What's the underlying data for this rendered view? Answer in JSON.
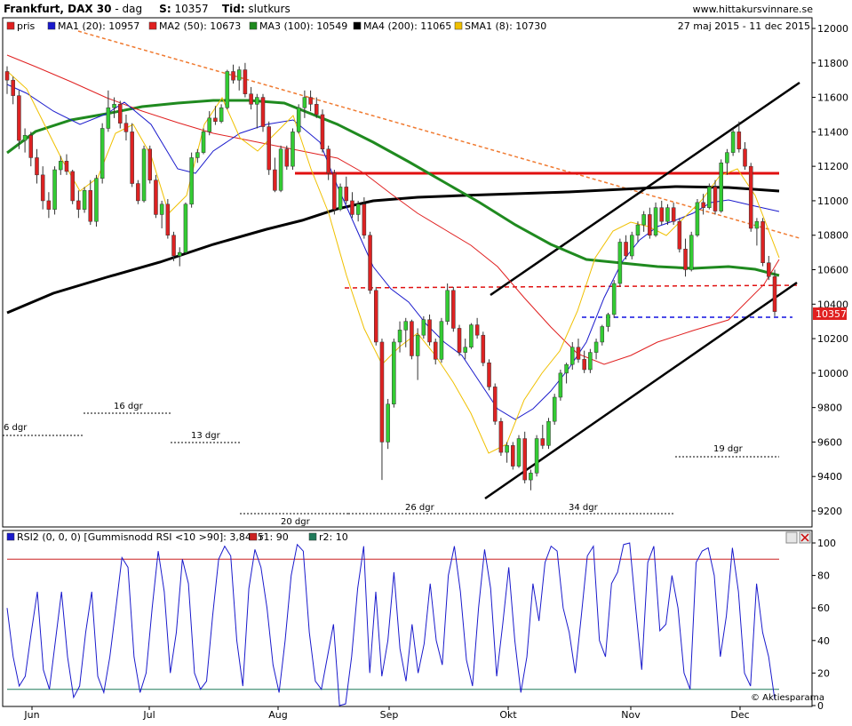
{
  "header": {
    "title": "Frankfurt, DAX 30",
    "sep": "-",
    "period": "dag",
    "s_label": "S:",
    "s_value": "10357",
    "tid_label": "Tid:",
    "tid_value": "slutkurs",
    "site": "www.hittakursvinnare.se",
    "date_range": "27 maj 2015 - 11 dec 2015"
  },
  "legend": [
    {
      "text": "pris",
      "color": "#e02020"
    },
    {
      "text": "MA1 (20): 10957",
      "color": "#1a1acc"
    },
    {
      "text": "MA2 (50): 10673",
      "color": "#e02020"
    },
    {
      "text": "MA3 (100): 10549",
      "color": "#1f8a1f"
    },
    {
      "text": "MA4 (200): 11065",
      "color": "#000000"
    },
    {
      "text": "SMA1 (8): 10730",
      "color": "#f0c000"
    }
  ],
  "price_tag": "10357",
  "annotations": [
    "6 dgr",
    "16 dgr",
    "13 dgr",
    "20 dgr",
    "26 dgr",
    "34 dgr",
    "19 dgr"
  ],
  "rsi_legend": [
    {
      "text": "RSI2 (0, 0, 0) [Gummisnodd RSI <10 >90]: 3,8455",
      "color": "#1a1acc"
    },
    {
      "text": "r1: 90",
      "color": "#cc2020"
    },
    {
      "text": "r2: 10",
      "color": "#1f7a5a"
    }
  ],
  "watermark": "© Aktiespararna",
  "chart_data": [
    {
      "type": "candlestick",
      "title": "Frankfurt, DAX 30",
      "ylim": [
        9200,
        12000
      ],
      "y_ticks": [
        "9200",
        "9400",
        "9600",
        "9800",
        "10000",
        "10200",
        "10400",
        "10600",
        "10800",
        "11000",
        "11200",
        "11400",
        "11600",
        "11800",
        "12000"
      ],
      "x_ticks": [
        "Jun",
        "Jul",
        "Aug",
        "Sep",
        "Okt",
        "Nov",
        "Dec"
      ],
      "last_close": 10357,
      "indicators": {
        "MA1 (20)": 10957,
        "MA2 (50)": 10673,
        "MA3 (100)": 10549,
        "MA4 (200)": 11065,
        "SMA1 (8)": 10730
      },
      "ohlc": [
        [
          11750,
          11780,
          11620,
          11700
        ],
        [
          11700,
          11720,
          11560,
          11610
        ],
        [
          11610,
          11640,
          11300,
          11350
        ],
        [
          11350,
          11420,
          11280,
          11380
        ],
        [
          11380,
          11400,
          11200,
          11250
        ],
        [
          11250,
          11300,
          11100,
          11150
        ],
        [
          11150,
          11200,
          10950,
          11000
        ],
        [
          11000,
          11050,
          10900,
          10950
        ],
        [
          10950,
          11200,
          10920,
          11180
        ],
        [
          11180,
          11260,
          11150,
          11230
        ],
        [
          11230,
          11270,
          11150,
          11170
        ],
        [
          11170,
          11180,
          10980,
          11000
        ],
        [
          11000,
          11060,
          10900,
          10950
        ],
        [
          10950,
          11080,
          10930,
          11060
        ],
        [
          11060,
          11120,
          10860,
          10880
        ],
        [
          10880,
          11150,
          10850,
          11130
        ],
        [
          11130,
          11450,
          11100,
          11420
        ],
        [
          11420,
          11640,
          11400,
          11540
        ],
        [
          11540,
          11600,
          11480,
          11560
        ],
        [
          11560,
          11580,
          11420,
          11450
        ],
        [
          11450,
          11500,
          11350,
          11400
        ],
        [
          11400,
          11450,
          11080,
          11100
        ],
        [
          11100,
          11120,
          10980,
          11000
        ],
        [
          11000,
          11320,
          10990,
          11300
        ],
        [
          11300,
          11320,
          11100,
          11120
        ],
        [
          11120,
          11150,
          10900,
          10920
        ],
        [
          10920,
          11000,
          10840,
          10980
        ],
        [
          10980,
          11010,
          10780,
          10800
        ],
        [
          10800,
          10820,
          10650,
          10680
        ],
        [
          10680,
          10730,
          10620,
          10700
        ],
        [
          10700,
          10990,
          10690,
          10980
        ],
        [
          10980,
          11280,
          10960,
          11250
        ],
        [
          11250,
          11300,
          11220,
          11280
        ],
        [
          11280,
          11420,
          11270,
          11400
        ],
        [
          11400,
          11520,
          11380,
          11480
        ],
        [
          11480,
          11550,
          11440,
          11460
        ],
        [
          11460,
          11560,
          11450,
          11540
        ],
        [
          11540,
          11760,
          11530,
          11750
        ],
        [
          11750,
          11790,
          11680,
          11700
        ],
        [
          11700,
          11780,
          11640,
          11760
        ],
        [
          11760,
          11800,
          11600,
          11620
        ],
        [
          11620,
          11660,
          11530,
          11560
        ],
        [
          11560,
          11620,
          11420,
          11600
        ],
        [
          11600,
          11620,
          11400,
          11430
        ],
        [
          11430,
          11460,
          11150,
          11180
        ],
        [
          11180,
          11250,
          11050,
          11060
        ],
        [
          11060,
          11320,
          11050,
          11300
        ],
        [
          11300,
          11320,
          11180,
          11200
        ],
        [
          11200,
          11420,
          11180,
          11400
        ],
        [
          11400,
          11560,
          11390,
          11540
        ],
        [
          11540,
          11640,
          11480,
          11600
        ],
        [
          11600,
          11640,
          11520,
          11560
        ],
        [
          11560,
          11600,
          11480,
          11500
        ],
        [
          11500,
          11530,
          11280,
          11300
        ],
        [
          11300,
          11320,
          11120,
          11160
        ],
        [
          11160,
          11180,
          10920,
          10950
        ],
        [
          10950,
          11100,
          10940,
          11080
        ],
        [
          11080,
          11140,
          10980,
          11000
        ],
        [
          11000,
          11050,
          10900,
          10920
        ],
        [
          10920,
          11000,
          10880,
          10980
        ],
        [
          10980,
          11020,
          10780,
          10800
        ],
        [
          10800,
          10820,
          10460,
          10480
        ],
        [
          10480,
          10500,
          10160,
          10180
        ],
        [
          10180,
          10200,
          9380,
          9600
        ],
        [
          9600,
          9850,
          9560,
          9820
        ],
        [
          9820,
          10200,
          9800,
          10180
        ],
        [
          10180,
          10300,
          10120,
          10250
        ],
        [
          10250,
          10320,
          10150,
          10300
        ],
        [
          10300,
          10310,
          10080,
          10100
        ],
        [
          10100,
          10260,
          9960,
          10220
        ],
        [
          10220,
          10330,
          10200,
          10310
        ],
        [
          10310,
          10340,
          10160,
          10180
        ],
        [
          10180,
          10200,
          10050,
          10080
        ],
        [
          10080,
          10320,
          10060,
          10300
        ],
        [
          10300,
          10520,
          10280,
          10480
        ],
        [
          10480,
          10500,
          10240,
          10260
        ],
        [
          10260,
          10280,
          10100,
          10120
        ],
        [
          10120,
          10200,
          10080,
          10150
        ],
        [
          10150,
          10290,
          10140,
          10280
        ],
        [
          10280,
          10320,
          10200,
          10220
        ],
        [
          10220,
          10240,
          10040,
          10060
        ],
        [
          10060,
          10080,
          9900,
          9920
        ],
        [
          9920,
          9940,
          9700,
          9720
        ],
        [
          9720,
          9740,
          9520,
          9540
        ],
        [
          9540,
          9600,
          9480,
          9580
        ],
        [
          9580,
          9600,
          9440,
          9460
        ],
        [
          9460,
          9640,
          9450,
          9620
        ],
        [
          9620,
          9660,
          9360,
          9380
        ],
        [
          9380,
          9440,
          9320,
          9420
        ],
        [
          9420,
          9640,
          9400,
          9620
        ],
        [
          9620,
          9700,
          9560,
          9580
        ],
        [
          9580,
          9740,
          9560,
          9720
        ],
        [
          9720,
          9880,
          9700,
          9860
        ],
        [
          9860,
          10020,
          9840,
          10000
        ],
        [
          10000,
          10060,
          9940,
          10050
        ],
        [
          10050,
          10180,
          10020,
          10150
        ],
        [
          10150,
          10200,
          10060,
          10080
        ],
        [
          10080,
          10130,
          10000,
          10020
        ],
        [
          10020,
          10140,
          10000,
          10120
        ],
        [
          10120,
          10200,
          10080,
          10180
        ],
        [
          10180,
          10280,
          10160,
          10270
        ],
        [
          10270,
          10350,
          10240,
          10340
        ],
        [
          10340,
          10540,
          10320,
          10520
        ],
        [
          10520,
          10780,
          10500,
          10760
        ],
        [
          10760,
          10800,
          10660,
          10680
        ],
        [
          10680,
          10820,
          10660,
          10800
        ],
        [
          10800,
          10880,
          10760,
          10860
        ],
        [
          10860,
          10940,
          10820,
          10920
        ],
        [
          10920,
          10960,
          10780,
          10800
        ],
        [
          10800,
          10990,
          10790,
          10960
        ],
        [
          10960,
          11000,
          10860,
          10880
        ],
        [
          10880,
          10980,
          10860,
          10960
        ],
        [
          10960,
          10990,
          10860,
          10880
        ],
        [
          10880,
          10900,
          10700,
          10720
        ],
        [
          10720,
          10780,
          10560,
          10600
        ],
        [
          10600,
          10820,
          10590,
          10800
        ],
        [
          10800,
          11010,
          10790,
          10990
        ],
        [
          10990,
          11040,
          10920,
          10960
        ],
        [
          10960,
          11100,
          10950,
          11080
        ],
        [
          11080,
          11120,
          10920,
          10940
        ],
        [
          10940,
          11240,
          10930,
          11220
        ],
        [
          11220,
          11300,
          11150,
          11280
        ],
        [
          11280,
          11420,
          11260,
          11400
        ],
        [
          11400,
          11460,
          11280,
          11300
        ],
        [
          11300,
          11340,
          11180,
          11200
        ],
        [
          11200,
          11220,
          10820,
          10840
        ],
        [
          10840,
          10900,
          10740,
          10880
        ],
        [
          10880,
          10900,
          10620,
          10640
        ],
        [
          10640,
          10680,
          10540,
          10560
        ],
        [
          10560,
          10600,
          10330,
          10357
        ]
      ]
    },
    {
      "type": "line",
      "title": "RSI2 (0, 0, 0) [Gummisnodd RSI <10 >90]",
      "ylim": [
        0,
        100
      ],
      "y_ticks": [
        "0",
        "20",
        "40",
        "60",
        "80",
        "100"
      ],
      "thresholds": {
        "r1": 90,
        "r2": 10
      },
      "last_value": 3.8455,
      "values": [
        60,
        30,
        12,
        18,
        45,
        70,
        22,
        10,
        40,
        70,
        30,
        5,
        12,
        45,
        70,
        18,
        8,
        30,
        60,
        91,
        85,
        30,
        8,
        20,
        60,
        95,
        70,
        20,
        45,
        90,
        75,
        20,
        10,
        15,
        55,
        90,
        98,
        92,
        40,
        12,
        72,
        96,
        85,
        60,
        25,
        8,
        40,
        80,
        99,
        95,
        45,
        15,
        10,
        30,
        50,
        0,
        1,
        30,
        72,
        98,
        20,
        70,
        18,
        40,
        82,
        35,
        15,
        50,
        20,
        38,
        75,
        40,
        25,
        80,
        98,
        70,
        28,
        12,
        60,
        96,
        72,
        18,
        50,
        85,
        40,
        8,
        30,
        75,
        52,
        88,
        98,
        95,
        60,
        45,
        20,
        55,
        92,
        98,
        40,
        30,
        75,
        82,
        99,
        100,
        60,
        22,
        88,
        98,
        46,
        50,
        80,
        60,
        20,
        10,
        88,
        95,
        97,
        80,
        30,
        55,
        97,
        70,
        20,
        12,
        75,
        45,
        30,
        3.8
      ]
    }
  ]
}
